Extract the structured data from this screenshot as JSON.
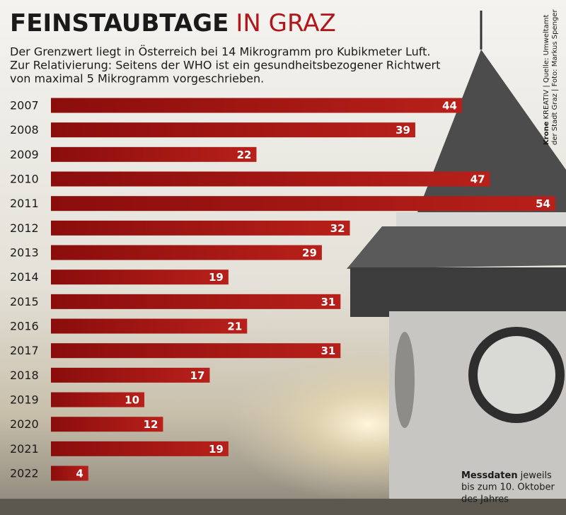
{
  "chart_data": {
    "type": "bar",
    "orientation": "horizontal",
    "title": [
      "FEINSTAUBTAGE",
      "IN GRAZ"
    ],
    "subtitle": [
      "Der Grenzwert liegt in Österreich bei 14 Mikrogramm pro Kubikmeter Luft.",
      "Zur Relativierung: Seitens der WHO ist ein gesundheitsbezogener Richtwert",
      "von maximal 5 Mikrogramm vorgeschrieben."
    ],
    "credit": [
      [
        "Krone",
        "KREATIV | Quelle: Umweltamt"
      ],
      "der Stadt Graz | Foto: Markus Spenger"
    ],
    "note": [
      [
        "Messdaten",
        "jeweils"
      ],
      "bis zum 10. Oktober",
      "des Jahres"
    ],
    "categories": [
      "2007",
      "2008",
      "2009",
      "2010",
      "2011",
      "2012",
      "2013",
      "2014",
      "2015",
      "2016",
      "2017",
      "2018",
      "2019",
      "2020",
      "2021",
      "2022"
    ],
    "values": [
      44,
      39,
      22,
      47,
      54,
      32,
      29,
      19,
      31,
      21,
      31,
      17,
      10,
      12,
      19,
      4
    ],
    "color": "#a3120f"
  }
}
